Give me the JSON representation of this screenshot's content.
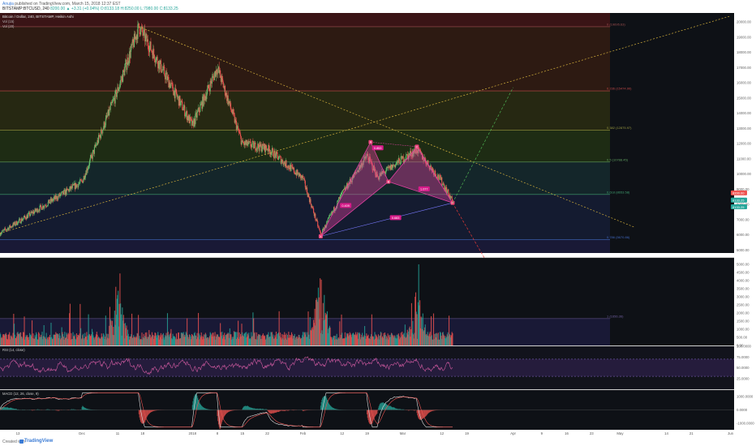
{
  "header": {
    "author": "Anujia",
    "published": "published on TradingView.com, March 15, 2018 12:37 EST",
    "symbol_line": "BITSTAMP:BTCUSD, 240",
    "ohlc": "8200.00 ▲ +3.31 (+0.04%) O:8133.18 H:8250.00 L:7980.00 C:8133.25"
  },
  "footer": {
    "created_with": "Created with",
    "brand": "TradingView"
  },
  "chart_data": [
    {
      "type": "line",
      "title": "Bitcoin / Dollar, 240, BITSTAMP, Heikin Ashi",
      "indicators": [
        "Vol (15)",
        "Vol (20)"
      ],
      "series": [
        {
          "name": "Bitcoin / Dollar",
          "x": [
            "Nov 8",
            "Dec 1",
            "Dec 11",
            "Dec 17",
            "Jan 1",
            "Jan 8",
            "Jan 15",
            "Jan 22",
            "Feb 1",
            "Feb 6",
            "Feb 12",
            "Feb 19",
            "Feb 22",
            "Mar 1",
            "Mar 5",
            "Mar 12",
            "Mar 15"
          ],
          "values": [
            6100,
            9500,
            15500,
            19700,
            13200,
            17000,
            12000,
            11700,
            9700,
            6000,
            8700,
            11200,
            9800,
            11000,
            11600,
            9500,
            8200
          ]
        }
      ],
      "y_ticks": [
        "20000.00",
        "19000.00",
        "18000.00",
        "17000.00",
        "16000.00",
        "15000.00",
        "14000.00",
        "13000.00",
        "12000.00",
        "11000.00",
        "10000.00",
        "9000.00",
        "8000.00",
        "7000.00",
        "6000.00",
        "5000.00"
      ],
      "ylim": [
        4800,
        20600
      ],
      "x_ticks": [
        "13",
        "Dec",
        "11",
        "18",
        "2018",
        "8",
        "15",
        "22",
        "Feb",
        "12",
        "19",
        "Mar",
        "12",
        "19",
        "Apr",
        "9",
        "16",
        "23",
        "May",
        "14",
        "21",
        "Jun"
      ],
      "price_labels": [
        {
          "text": "8200.00",
          "color": "#ef5350"
        },
        {
          "text": "8133.25",
          "color": "#26a69a"
        },
        {
          "text": "8133.25",
          "color": "#26a69a"
        }
      ],
      "fib_levels": [
        {
          "label": "0 (19695.63)",
          "value": 19696,
          "color": "#a05050"
        },
        {
          "label": "0.236 (15474.90)",
          "value": 15475,
          "color": "#c04848"
        },
        {
          "label": "0.382 (12875.97)",
          "value": 12876,
          "color": "#9a9a40"
        },
        {
          "label": "0.5 (10788.45)",
          "value": 10788,
          "color": "#60a060"
        },
        {
          "label": "0.618 (8653.58)",
          "value": 8654,
          "color": "#40a070"
        },
        {
          "label": "0.786 (5670.86)",
          "value": 5671,
          "color": "#4068c0"
        },
        {
          "label": "1 (1656.36)",
          "value": 1656,
          "color": "#7060a0"
        }
      ],
      "pattern": {
        "points": [
          {
            "x": "Feb 6",
            "y": 5900,
            "label": "X"
          },
          {
            "x": "Feb 20",
            "y": 12100,
            "label": "A"
          },
          {
            "x": "Feb 25",
            "y": 9500,
            "label": "B"
          },
          {
            "x": "Mar 5",
            "y": 11800,
            "label": "C"
          },
          {
            "x": "Mar 15",
            "y": 8100,
            "label": "D"
          }
        ],
        "ratios": [
          {
            "text": "0.853",
            "x": "Feb 22",
            "y": 11700
          },
          {
            "text": "0.409",
            "x": "Feb 13",
            "y": 7900
          },
          {
            "text": "1.077",
            "x": "Mar 7",
            "y": 9000
          },
          {
            "text": "0.683",
            "x": "Feb 27",
            "y": 7100
          }
        ]
      },
      "projections": [
        {
          "to_x": "Apr 1",
          "to_y": 15700,
          "color": "#4caf50"
        },
        {
          "to_x": "Mar 31",
          "to_y": 1600,
          "color": "#e53935"
        }
      ],
      "trendlines": [
        {
          "from_x": "Dec 17",
          "from_y": 19700,
          "to_x": "May 5",
          "to_y": 6500,
          "color": "#d4b03c"
        },
        {
          "from_x": "Nov 8",
          "from_y": 6100,
          "to_x": "Jun 1",
          "to_y": 20400,
          "color": "#d4b03c"
        }
      ]
    },
    {
      "type": "bar",
      "title": "Volume",
      "y_ticks": [
        "5000.00",
        "4500.00",
        "4000.00",
        "3500.00",
        "3000.00",
        "2500.00",
        "2000.00",
        "1500.00",
        "1000.00",
        "500.00",
        "0.00"
      ],
      "ylim": [
        0,
        5400
      ],
      "peaks": [
        {
          "x": "Dec 11",
          "value": 3500
        },
        {
          "x": "Feb 6",
          "value": 4200
        },
        {
          "x": "Mar 5",
          "value": 3100
        }
      ]
    },
    {
      "type": "line",
      "title": "RSI (14, close)",
      "y_ticks": [
        "100.0000",
        "75.0000",
        "50.0000",
        "25.0000"
      ],
      "ylim": [
        0,
        100
      ],
      "bands": [
        70,
        30
      ]
    },
    {
      "type": "line",
      "title": "MACD (12, 26, close, 9)",
      "y_ticks": [
        "1000.0000",
        "0.0000",
        "-1000.0000"
      ],
      "ylim": [
        -1500,
        1500
      ]
    }
  ]
}
